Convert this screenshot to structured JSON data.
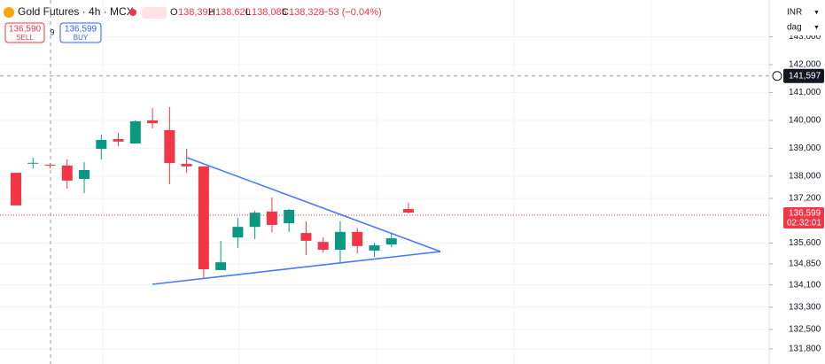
{
  "chart_data": {
    "type": "candlestick",
    "title": "Gold Futures · 4h · MCX",
    "ohlc_header": {
      "open": "138,392",
      "high": "138,620",
      "low": "138,085",
      "close": "138,328",
      "change": "−53 (−0.04%)"
    },
    "sell": {
      "price": "136,590",
      "label": "SELL"
    },
    "spread": "9",
    "buy": {
      "price": "136,599",
      "label": "BUY"
    },
    "currency": "INR",
    "interval_menu": "dag",
    "up_color": "#089981",
    "down_color": "#f23645",
    "open": [
      138120,
      138460,
      138410,
      138380,
      137900,
      138980,
      139330,
      139170,
      140000,
      139650,
      138440,
      138350,
      134630,
      135800,
      136180,
      136730,
      136310,
      135960,
      135640,
      135360,
      136000,
      135330,
      135550,
      136820
    ],
    "high": [
      138120,
      138660,
      138470,
      138600,
      138500,
      139490,
      139550,
      140000,
      140440,
      140480,
      138980,
      138350,
      135680,
      136500,
      136760,
      137230,
      136820,
      136380,
      135800,
      136380,
      136150,
      135610,
      135930,
      137040
    ],
    "low": [
      136950,
      138280,
      138280,
      137550,
      137390,
      138600,
      139080,
      139170,
      139710,
      137710,
      138120,
      134340,
      134630,
      135420,
      135740,
      135990,
      135990,
      135170,
      135260,
      134910,
      135230,
      135100,
      135450,
      136660
    ],
    "close": [
      136950,
      138480,
      138380,
      137840,
      138220,
      139300,
      139240,
      139970,
      139900,
      138470,
      138350,
      134660,
      134910,
      136180,
      136690,
      136250,
      136790,
      135680,
      135360,
      136000,
      135490,
      135520,
      135770,
      136690
    ],
    "ylim": [
      131260,
      144320
    ],
    "yticks": [
      {
        "value": 143000,
        "label": "143,000"
      },
      {
        "value": 142000,
        "label": "142,000"
      },
      {
        "value": 141000,
        "label": "141,000"
      },
      {
        "value": 140000,
        "label": "140,000"
      },
      {
        "value": 139000,
        "label": "139,000"
      },
      {
        "value": 138000,
        "label": "138,000"
      },
      {
        "value": 137200,
        "label": "137,200"
      },
      {
        "value": 135600,
        "label": "135,600"
      },
      {
        "value": 134850,
        "label": "134,850"
      },
      {
        "value": 134100,
        "label": "134,100"
      },
      {
        "value": 133300,
        "label": "133,300"
      },
      {
        "value": 132500,
        "label": "132,500"
      },
      {
        "value": 131800,
        "label": "131,800"
      }
    ],
    "grid": true,
    "last_price": {
      "value": 136599,
      "label": "136,599",
      "countdown": "02:32:01"
    },
    "crosshair_price": {
      "value": 141597,
      "label": "141,597"
    }
  }
}
